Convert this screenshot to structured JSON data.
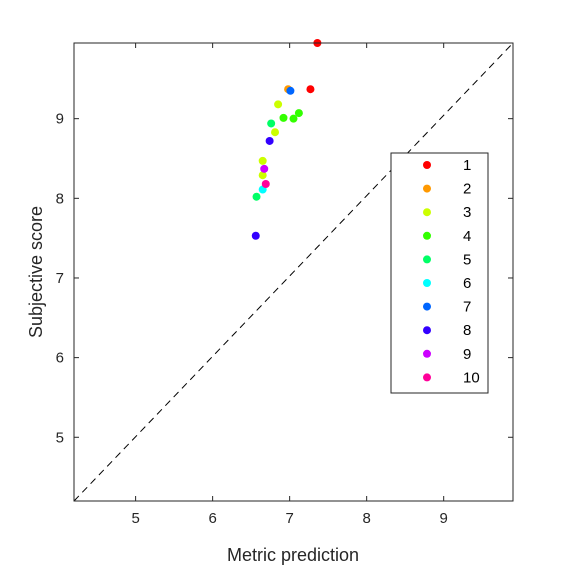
{
  "chart_data": {
    "type": "scatter",
    "title": "",
    "xlabel": "Metric prediction",
    "ylabel": "Subjective score",
    "xlim": [
      4.2,
      9.9
    ],
    "ylim": [
      4.2,
      9.95
    ],
    "xticks": [
      5,
      6,
      7,
      8,
      9
    ],
    "yticks": [
      5,
      6,
      7,
      8,
      9
    ],
    "reference_line": "y = x (dashed)",
    "legend_position": "right",
    "grid": false,
    "series": [
      {
        "name": "1",
        "color": "#ff0000",
        "points": [
          [
            7.36,
            9.95
          ],
          [
            7.27,
            9.37
          ]
        ]
      },
      {
        "name": "2",
        "color": "#ff9900",
        "points": [
          [
            6.98,
            9.37
          ]
        ]
      },
      {
        "name": "3",
        "color": "#ccff00",
        "points": [
          [
            6.85,
            9.18
          ],
          [
            6.81,
            8.83
          ],
          [
            6.65,
            8.47
          ],
          [
            6.65,
            8.29
          ]
        ]
      },
      {
        "name": "4",
        "color": "#33ff00",
        "points": [
          [
            6.92,
            9.01
          ],
          [
            7.05,
            9.0
          ],
          [
            7.12,
            9.07
          ]
        ]
      },
      {
        "name": "5",
        "color": "#00ff66",
        "points": [
          [
            6.76,
            8.94
          ],
          [
            6.57,
            8.02
          ]
        ]
      },
      {
        "name": "6",
        "color": "#00ffff",
        "points": [
          [
            6.65,
            8.11
          ]
        ]
      },
      {
        "name": "7",
        "color": "#0066ff",
        "points": [
          [
            7.01,
            9.35
          ]
        ]
      },
      {
        "name": "8",
        "color": "#3300ff",
        "points": [
          [
            6.74,
            8.72
          ],
          [
            6.56,
            7.53
          ]
        ]
      },
      {
        "name": "9",
        "color": "#cc00ff",
        "points": [
          [
            6.67,
            8.37
          ]
        ]
      },
      {
        "name": "10",
        "color": "#ff0099",
        "points": [
          [
            6.69,
            8.18
          ]
        ]
      }
    ]
  }
}
